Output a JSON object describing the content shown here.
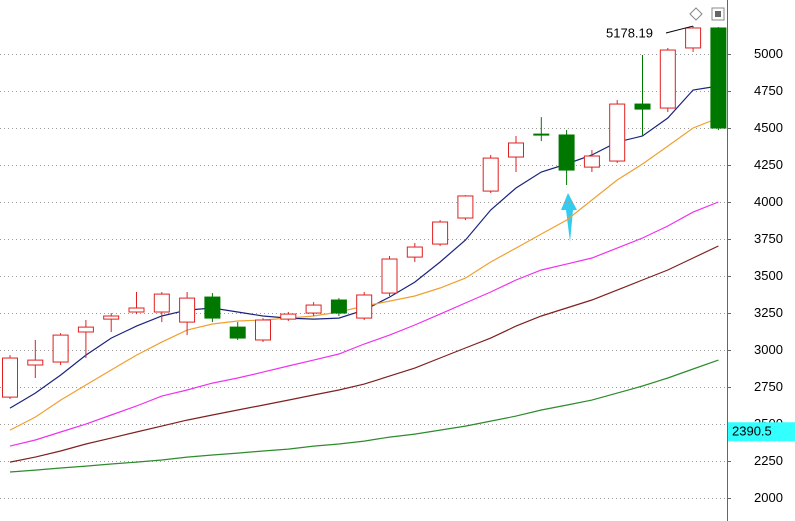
{
  "chart_data": {
    "type": "candlestick",
    "open": [
      2682,
      2899,
      2919,
      3122,
      3209,
      3257,
      3257,
      3189,
      3358,
      3155,
      3068,
      3209,
      3250,
      3338,
      3216,
      3385,
      3628,
      3716,
      3892,
      4074,
      4304,
      4459,
      4453,
      4236,
      4277,
      4662,
      4635,
      5041,
      5176
    ],
    "high": [
      2966,
      3068,
      3115,
      3203,
      3250,
      3392,
      3392,
      3392,
      3385,
      3189,
      3216,
      3257,
      3324,
      3351,
      3392,
      3635,
      3723,
      3878,
      4047,
      4318,
      4446,
      4574,
      4486,
      4351,
      4689,
      4993,
      5041,
      5189,
      5182
    ],
    "low": [
      2669,
      2811,
      2899,
      2946,
      3122,
      3243,
      3189,
      3101,
      3189,
      3068,
      3054,
      3196,
      3230,
      3230,
      3203,
      3365,
      3595,
      3703,
      3878,
      4061,
      4203,
      4412,
      4115,
      4203,
      4264,
      4446,
      4608,
      5014,
      4486
    ],
    "close": [
      2946,
      2932,
      3101,
      3155,
      3230,
      3284,
      3378,
      3351,
      3216,
      3081,
      3203,
      3243,
      3304,
      3250,
      3372,
      3615,
      3696,
      3865,
      4041,
      4297,
      4399,
      4453,
      4216,
      4311,
      4662,
      4628,
      5027,
      5176,
      4500
    ],
    "up_color": "#e02020",
    "down_color": "#007800",
    "series": [
      {
        "color": "#1a237e",
        "values": [
          2608,
          2709,
          2831,
          2966,
          3081,
          3162,
          3230,
          3270,
          3284,
          3257,
          3230,
          3216,
          3209,
          3216,
          3270,
          3358,
          3459,
          3595,
          3743,
          3946,
          4095,
          4203,
          4257,
          4318,
          4405,
          4446,
          4568,
          4757,
          4784
        ]
      },
      {
        "color": "#f0a030",
        "values": [
          2459,
          2547,
          2662,
          2764,
          2865,
          2966,
          3054,
          3135,
          3176,
          3196,
          3203,
          3216,
          3230,
          3257,
          3297,
          3331,
          3365,
          3419,
          3486,
          3595,
          3689,
          3784,
          3878,
          4014,
          4149,
          4257,
          4378,
          4500,
          4568
        ]
      },
      {
        "color": "#ee33ee",
        "values": [
          2351,
          2392,
          2446,
          2500,
          2561,
          2622,
          2689,
          2730,
          2777,
          2811,
          2851,
          2892,
          2932,
          2973,
          3041,
          3101,
          3169,
          3243,
          3318,
          3392,
          3473,
          3541,
          3581,
          3622,
          3689,
          3757,
          3838,
          3932,
          4000
        ]
      },
      {
        "color": "#802020",
        "values": [
          2243,
          2277,
          2318,
          2365,
          2405,
          2446,
          2486,
          2527,
          2561,
          2595,
          2628,
          2662,
          2696,
          2730,
          2770,
          2824,
          2878,
          2946,
          3014,
          3081,
          3162,
          3230,
          3284,
          3338,
          3405,
          3473,
          3541,
          3622,
          3703
        ]
      },
      {
        "color": "#2e8b2e",
        "values": [
          2176,
          2189,
          2203,
          2216,
          2230,
          2243,
          2257,
          2277,
          2291,
          2304,
          2318,
          2331,
          2351,
          2365,
          2385,
          2412,
          2432,
          2459,
          2486,
          2520,
          2554,
          2595,
          2628,
          2662,
          2709,
          2757,
          2811,
          2872,
          2932
        ]
      }
    ],
    "ylim": [
      1845,
      5365
    ],
    "yticks": [
      2000,
      2250,
      2500,
      2750,
      3000,
      3250,
      3500,
      3750,
      4000,
      4250,
      4500,
      4750,
      5000
    ],
    "grid": true,
    "annotation": 5178.19,
    "price_label": 2390.5
  }
}
